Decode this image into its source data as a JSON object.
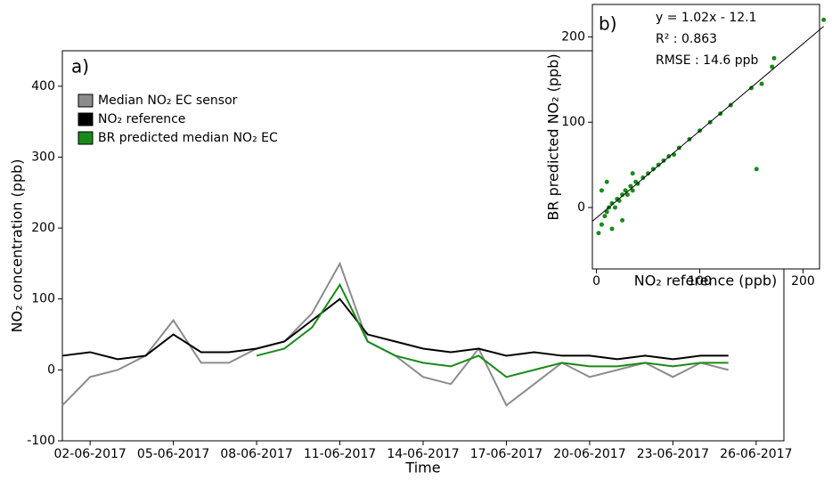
{
  "chart_data": [
    {
      "type": "line",
      "annotation": "a)",
      "xlabel": "Time",
      "ylabel": "NO₂ concentration (ppb)",
      "x": [
        "01-06-2017",
        "02-06-2017",
        "03-06-2017",
        "04-06-2017",
        "05-06-2017",
        "06-06-2017",
        "07-06-2017",
        "08-06-2017",
        "09-06-2017",
        "10-06-2017",
        "11-06-2017",
        "12-06-2017",
        "13-06-2017",
        "14-06-2017",
        "15-06-2017",
        "16-06-2017",
        "17-06-2017",
        "18-06-2017",
        "19-06-2017",
        "20-06-2017",
        "21-06-2017",
        "22-06-2017",
        "23-06-2017",
        "24-06-2017",
        "25-06-2017"
      ],
      "series": [
        {
          "name": "Median NO₂ EC sensor",
          "color": "#8c8c8c",
          "values": [
            -50,
            -10,
            0,
            20,
            70,
            10,
            10,
            30,
            40,
            80,
            150,
            40,
            20,
            -10,
            -20,
            30,
            -50,
            -20,
            10,
            -10,
            0,
            10,
            -10,
            10,
            0
          ]
        },
        {
          "name": "NO₂ reference",
          "color": "#000000",
          "values": [
            20,
            25,
            15,
            20,
            50,
            25,
            25,
            30,
            40,
            70,
            100,
            50,
            40,
            30,
            25,
            30,
            20,
            25,
            20,
            20,
            15,
            20,
            15,
            20,
            20
          ]
        },
        {
          "name": "BR predicted median NO₂ EC",
          "color": "#1a8a1a",
          "values": [
            null,
            null,
            null,
            null,
            null,
            null,
            null,
            20,
            30,
            60,
            120,
            40,
            20,
            10,
            5,
            20,
            -10,
            0,
            10,
            5,
            5,
            10,
            5,
            10,
            10
          ]
        }
      ],
      "xlim": [
        "01-06-2017",
        "27-06-2017"
      ],
      "xticks": [
        "02-06-2017",
        "05-06-2017",
        "08-06-2017",
        "11-06-2017",
        "14-06-2017",
        "17-06-2017",
        "20-06-2017",
        "23-06-2017",
        "26-06-2017"
      ],
      "ylim": [
        -100,
        450
      ],
      "yticks": [
        -100,
        0,
        100,
        200,
        300,
        400
      ],
      "legend": "upper-left"
    },
    {
      "type": "scatter",
      "annotation": "b)",
      "fit_label": "y = 1.02x - 12.1",
      "r2_label": "R² : 0.863",
      "rmse_label": "RMSE : 14.6 ppb",
      "fit": {
        "slope": 1.02,
        "intercept": -12.1
      },
      "xlabel": "NO₂ reference (ppb)",
      "ylabel": "BR predicted NO₂ (ppb)",
      "color": "#1a8a1a",
      "x": [
        2,
        5,
        8,
        10,
        12,
        15,
        18,
        20,
        22,
        25,
        28,
        30,
        33,
        35,
        38,
        40,
        45,
        50,
        55,
        60,
        65,
        70,
        75,
        80,
        90,
        100,
        110,
        120,
        130,
        150,
        155,
        160,
        170,
        172,
        220,
        5,
        10,
        15,
        25,
        35
      ],
      "y": [
        -30,
        -20,
        -10,
        -5,
        0,
        5,
        0,
        10,
        8,
        15,
        20,
        15,
        25,
        20,
        30,
        28,
        35,
        40,
        45,
        50,
        55,
        60,
        62,
        70,
        80,
        90,
        100,
        110,
        120,
        140,
        45,
        145,
        165,
        175,
        220,
        20,
        30,
        -25,
        -15,
        40
      ],
      "xlim": [
        -4,
        216
      ],
      "xticks": [
        0,
        100,
        200
      ],
      "ylim": [
        -72,
        238
      ],
      "yticks": [
        0,
        100,
        200
      ]
    }
  ]
}
